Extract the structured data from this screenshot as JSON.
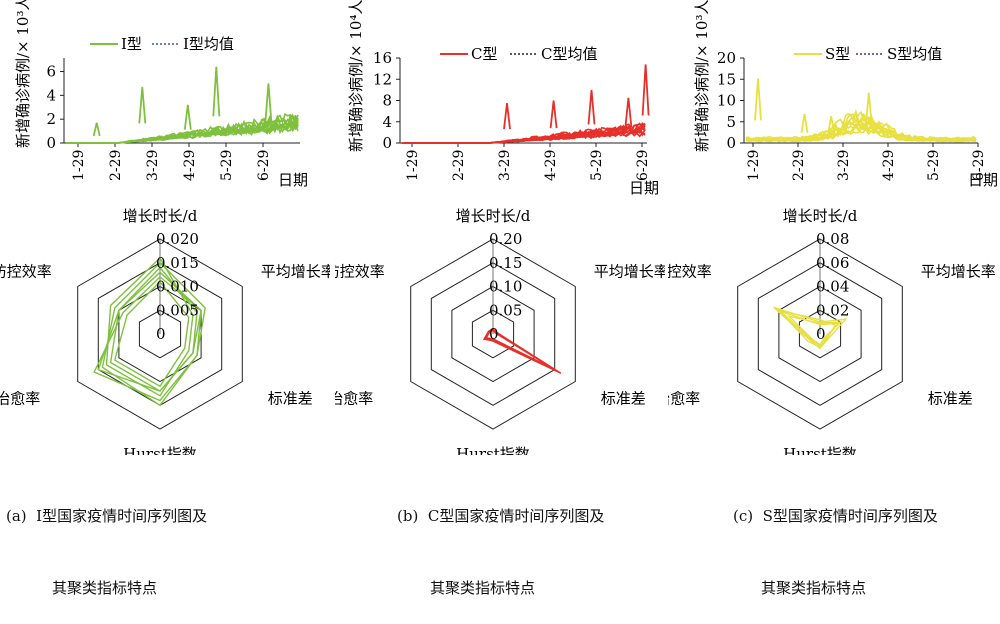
{
  "chart_data": [
    {
      "type": "line",
      "panel": "a",
      "ylabel": "新增确诊病例/× 10³人",
      "xlabel": "日期",
      "x_ticks": [
        "1-29",
        "2-29",
        "3-29",
        "4-29",
        "5-29",
        "6-29"
      ],
      "y_ticks": [
        "0",
        "2",
        "4",
        "6"
      ],
      "ylim": [
        0,
        6.8
      ],
      "legend": [
        "I型",
        "I型均值"
      ],
      "color": "#7fc03f",
      "mean_color": "#3a55c8",
      "series_note": "many countries overlaid",
      "peaks": [
        {
          "date": "2-14",
          "value": 1.7
        },
        {
          "date": "3-21",
          "value": 4.7
        },
        {
          "date": "4-28",
          "value": 3.2
        },
        {
          "date": "5-21",
          "value": 6.4
        },
        {
          "date": "7-03",
          "value": 5.0
        }
      ]
    },
    {
      "type": "line",
      "panel": "b",
      "ylabel": "新增确诊病例/× 10⁴人",
      "xlabel": "日期",
      "x_ticks": [
        "1-29",
        "2-29",
        "3-29",
        "4-29",
        "5-29",
        "6-29"
      ],
      "y_ticks": [
        "0",
        "4",
        "8",
        "12",
        "16"
      ],
      "ylim": [
        0,
        16
      ],
      "legend": [
        "C型",
        "C型均值"
      ],
      "color": "#e8302a",
      "mean_color": "#222222",
      "peaks": [
        {
          "date": "3-31",
          "value": 7.5
        },
        {
          "date": "5-01",
          "value": 8.0
        },
        {
          "date": "5-26",
          "value": 10.0
        },
        {
          "date": "6-20",
          "value": 8.5
        },
        {
          "date": "7-01",
          "value": 14.8
        }
      ]
    },
    {
      "type": "line",
      "panel": "c",
      "ylabel": "新增确诊病例/× 10³人",
      "xlabel": "日期",
      "x_ticks": [
        "1-29",
        "2-29",
        "3-29",
        "4-29",
        "5-29",
        "6-29"
      ],
      "y_ticks": [
        "0",
        "5",
        "10",
        "15",
        "20"
      ],
      "ylim": [
        0,
        20
      ],
      "legend": [
        "S型",
        "S型均值"
      ],
      "color": "#e8e040",
      "mean_color": "#5a2a8a",
      "peaks": [
        {
          "date": "2-02",
          "value": 15.2
        },
        {
          "date": "3-03",
          "value": 6.8
        },
        {
          "date": "3-21",
          "value": 6.3
        },
        {
          "date": "4-16",
          "value": 11.8
        }
      ]
    },
    {
      "type": "radar",
      "panel": "a",
      "axes": [
        "增长时长/d",
        "平均增长率",
        "标准差",
        "Hurst指数",
        "治愈率",
        "防控效率"
      ],
      "ticks": [
        "0",
        "0.005",
        "0.010",
        "0.015",
        "0.020"
      ],
      "rmax": 0.02,
      "color": "#7fc03f",
      "profiles": [
        [
          0.015,
          0.011,
          0.009,
          0.015,
          0.014,
          0.011
        ],
        [
          0.014,
          0.009,
          0.008,
          0.012,
          0.012,
          0.01
        ],
        [
          0.012,
          0.01,
          0.009,
          0.014,
          0.016,
          0.009
        ],
        [
          0.016,
          0.008,
          0.007,
          0.013,
          0.013,
          0.012
        ],
        [
          0.011,
          0.007,
          0.006,
          0.011,
          0.011,
          0.008
        ],
        [
          0.013,
          0.01,
          0.008,
          0.012,
          0.015,
          0.01
        ]
      ]
    },
    {
      "type": "radar",
      "panel": "b",
      "axes": [
        "增长时长/d",
        "平均增长率",
        "标准差",
        "Hurst指数",
        "治愈率",
        "防控效率"
      ],
      "ticks": [
        "0",
        "0.05",
        "0.10",
        "0.15",
        "0.20"
      ],
      "rmax": 0.2,
      "color": "#e8302a",
      "profiles": [
        [
          0.01,
          0.008,
          0.165,
          0.015,
          0.02,
          0.01
        ],
        [
          0.008,
          0.006,
          0.155,
          0.012,
          0.018,
          0.008
        ],
        [
          0.012,
          0.007,
          0.15,
          0.014,
          0.022,
          0.011
        ],
        [
          0.009,
          0.005,
          0.148,
          0.01,
          0.016,
          0.009
        ]
      ]
    },
    {
      "type": "radar",
      "panel": "c",
      "axes": [
        "增长时长/d",
        "平均增长率",
        "标准差",
        "Hurst指数",
        "治愈率",
        "防控效率"
      ],
      "ticks": [
        "0",
        "0.02",
        "0.04",
        "0.06",
        "0.08"
      ],
      "rmax": 0.08,
      "color": "#e8e040",
      "profiles": [
        [
          0.01,
          0.025,
          0.008,
          0.012,
          0.01,
          0.045
        ],
        [
          0.008,
          0.018,
          0.006,
          0.01,
          0.009,
          0.038
        ],
        [
          0.012,
          0.015,
          0.007,
          0.011,
          0.012,
          0.04
        ],
        [
          0.009,
          0.02,
          0.005,
          0.009,
          0.008,
          0.03
        ]
      ]
    }
  ],
  "captions": [
    {
      "line1": "(a)  I型国家疫情时间序列图及",
      "line2": "其聚类指标特点"
    },
    {
      "line1": "(b)  C型国家疫情时间序列图及",
      "line2": "其聚类指标特点"
    },
    {
      "line1": "(c)  S型国家疫情时间序列图及",
      "line2": "其聚类指标特点"
    }
  ]
}
